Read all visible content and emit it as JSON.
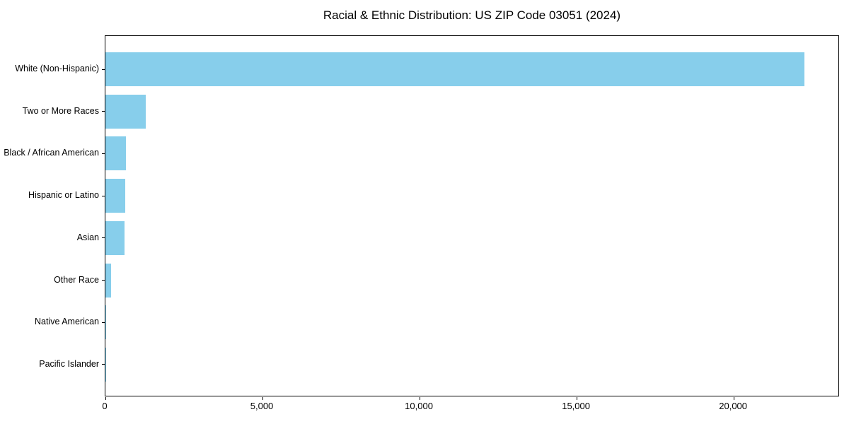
{
  "title": "Racial & Ethnic Distribution: US ZIP Code 03051 (2024)",
  "chart_data": {
    "type": "bar",
    "orientation": "horizontal",
    "title": "Racial & Ethnic Distribution: US ZIP Code 03051 (2024)",
    "categories": [
      "White (Non-Hispanic)",
      "Two or More Races",
      "Black / African American",
      "Hispanic or Latino",
      "Asian",
      "Other Race",
      "Native American",
      "Pacific Islander"
    ],
    "values": [
      22250,
      1280,
      650,
      620,
      600,
      180,
      25,
      6
    ],
    "xlabel": "",
    "ylabel": "",
    "xlim": [
      0,
      23375
    ],
    "xticks": [
      {
        "value": 0,
        "label": "0"
      },
      {
        "value": 5000,
        "label": "5,000"
      },
      {
        "value": 10000,
        "label": "10,000"
      },
      {
        "value": 15000,
        "label": "15,000"
      },
      {
        "value": 20000,
        "label": "20,000"
      }
    ],
    "bar_color": "#87CEEB",
    "axis_color": "#000000",
    "text_color": "#000000",
    "grid": false,
    "legend": "none"
  }
}
